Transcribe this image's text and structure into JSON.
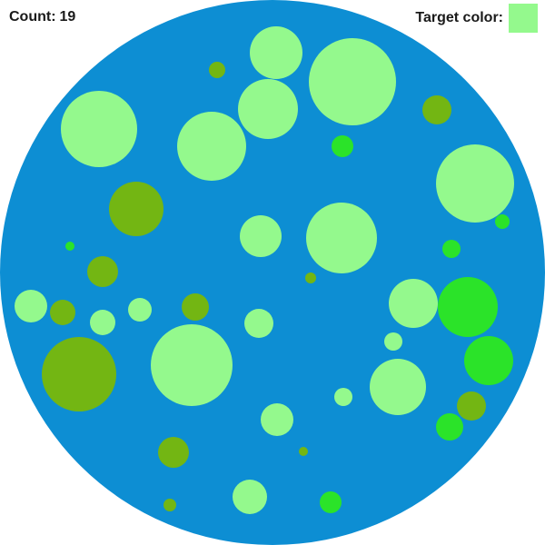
{
  "hud": {
    "count_label": "Count:",
    "count_value": "19",
    "target_label": "Target color:"
  },
  "colors": {
    "board": "#0d8ed3",
    "target": "#94f98d",
    "olive": "#73b613",
    "bright_green": "#2be329"
  },
  "dot_types": [
    "target",
    "olive",
    "bright_green"
  ]
}
